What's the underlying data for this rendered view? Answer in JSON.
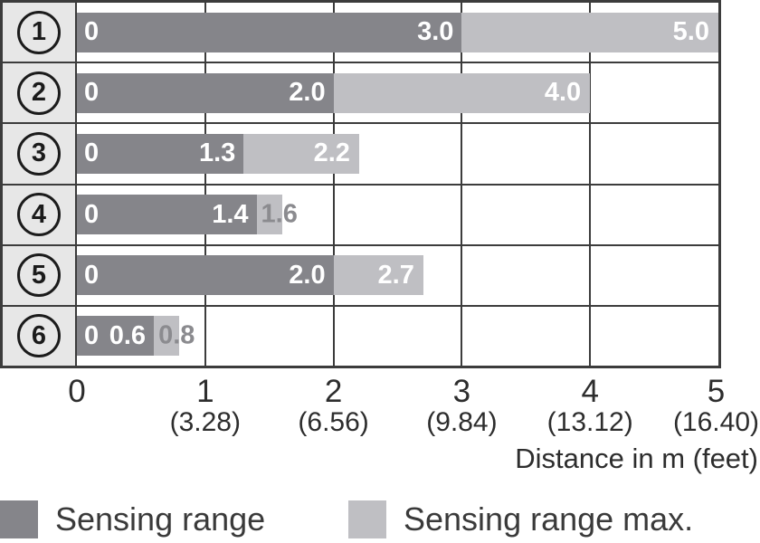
{
  "chart_data": {
    "type": "bar",
    "orientation": "horizontal",
    "title": "",
    "xlabel": "Distance in m (feet)",
    "ylabel": "",
    "xlim": [
      0,
      5
    ],
    "grid": true,
    "x_ticks": [
      {
        "m": "0",
        "feet": ""
      },
      {
        "m": "1",
        "feet": "(3.28)"
      },
      {
        "m": "2",
        "feet": "(6.56)"
      },
      {
        "m": "3",
        "feet": "(9.84)"
      },
      {
        "m": "4",
        "feet": "(13.12)"
      },
      {
        "m": "5",
        "feet": "(16.40)"
      }
    ],
    "rows": [
      {
        "id": "1",
        "zero_label": "0",
        "sensing": 3.0,
        "sensing_label": "3.0",
        "max": 5.0,
        "max_label": "5.0",
        "max_label_placement": "inside"
      },
      {
        "id": "2",
        "zero_label": "0",
        "sensing": 2.0,
        "sensing_label": "2.0",
        "max": 4.0,
        "max_label": "4.0",
        "max_label_placement": "inside"
      },
      {
        "id": "3",
        "zero_label": "0",
        "sensing": 1.3,
        "sensing_label": "1.3",
        "max": 2.2,
        "max_label": "2.2",
        "max_label_placement": "inside"
      },
      {
        "id": "4",
        "zero_label": "0",
        "sensing": 1.4,
        "sensing_label": "1.4",
        "max": 1.6,
        "max_label": "1.6",
        "max_label_placement": "outside"
      },
      {
        "id": "5",
        "zero_label": "0",
        "sensing": 2.0,
        "sensing_label": "2.0",
        "max": 2.7,
        "max_label": "2.7",
        "max_label_placement": "inside"
      },
      {
        "id": "6",
        "zero_label": "0",
        "sensing": 0.6,
        "sensing_label": "0.6",
        "max": 0.8,
        "max_label": "0.8",
        "max_label_placement": "outside"
      }
    ],
    "legend": [
      {
        "label": "Sensing range",
        "color": "#85858a"
      },
      {
        "label": "Sensing range max.",
        "color": "#bfbfc3"
      }
    ],
    "legend_position": "bottom"
  },
  "colors": {
    "sensing_bar": "#85858a",
    "sensing_max_bar": "#bfbfc3",
    "row_label_bg": "#e7e7e7",
    "frame_border": "#3c3c3c",
    "axis_text": "#2d2d2d",
    "value_text_inside": "#ffffff",
    "value_text_outside": "#8b8b8f"
  }
}
